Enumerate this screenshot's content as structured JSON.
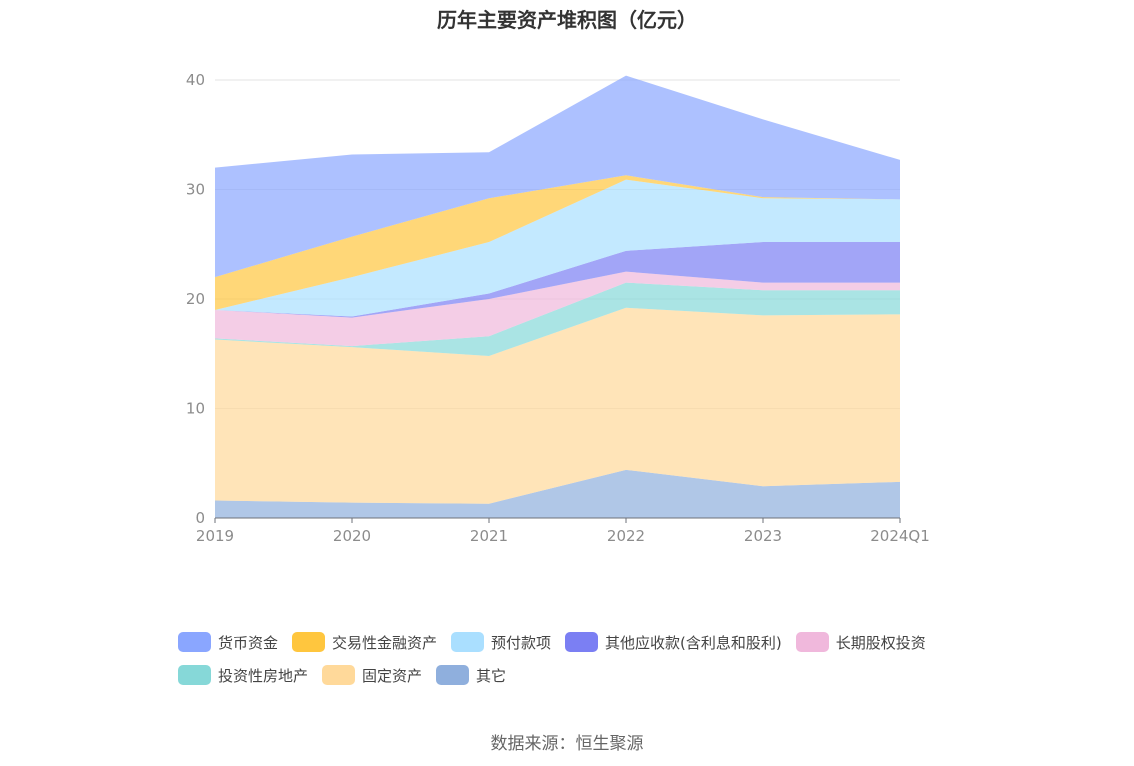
{
  "chart_data": {
    "type": "area",
    "stacked": true,
    "title": "历年主要资产堆积图（亿元）",
    "categories": [
      "2019",
      "2020",
      "2021",
      "2022",
      "2023",
      "2024Q1"
    ],
    "ylim": [
      0,
      40
    ],
    "yticks": [
      0,
      10,
      20,
      30,
      40
    ],
    "grid": "horizontal",
    "legend_position": "bottom",
    "series": [
      {
        "name": "其它",
        "color": "#8fafdd",
        "values": [
          1.6,
          1.4,
          1.3,
          4.4,
          2.9,
          3.3
        ]
      },
      {
        "name": "固定资产",
        "color": "#ffd99a",
        "values": [
          14.7,
          14.2,
          13.5,
          14.8,
          15.6,
          15.3
        ]
      },
      {
        "name": "投资性房地产",
        "color": "#86d8d8",
        "values": [
          0.1,
          0.1,
          1.8,
          2.3,
          2.3,
          2.2
        ]
      },
      {
        "name": "长期股权投资",
        "color": "#f0b8dc",
        "values": [
          2.6,
          2.6,
          3.4,
          1.0,
          0.7,
          0.7
        ]
      },
      {
        "name": "其他应收款(含利息和股利)",
        "color": "#7b7ff3",
        "values": [
          0.0,
          0.1,
          0.5,
          1.9,
          3.7,
          3.7
        ]
      },
      {
        "name": "预付款项",
        "color": "#aadfff",
        "values": [
          0.0,
          3.6,
          4.7,
          6.5,
          4.0,
          3.9
        ]
      },
      {
        "name": "交易性金融资产",
        "color": "#ffc63e",
        "values": [
          3.0,
          3.7,
          4.0,
          0.4,
          0.1,
          0.0
        ]
      },
      {
        "name": "货币资金",
        "color": "#8aa6ff",
        "values": [
          10.0,
          7.5,
          4.2,
          9.1,
          7.1,
          3.6
        ]
      }
    ]
  },
  "legend_order": [
    7,
    6,
    5,
    4,
    3,
    2,
    1,
    0
  ],
  "source_text": "数据来源：恒生聚源"
}
